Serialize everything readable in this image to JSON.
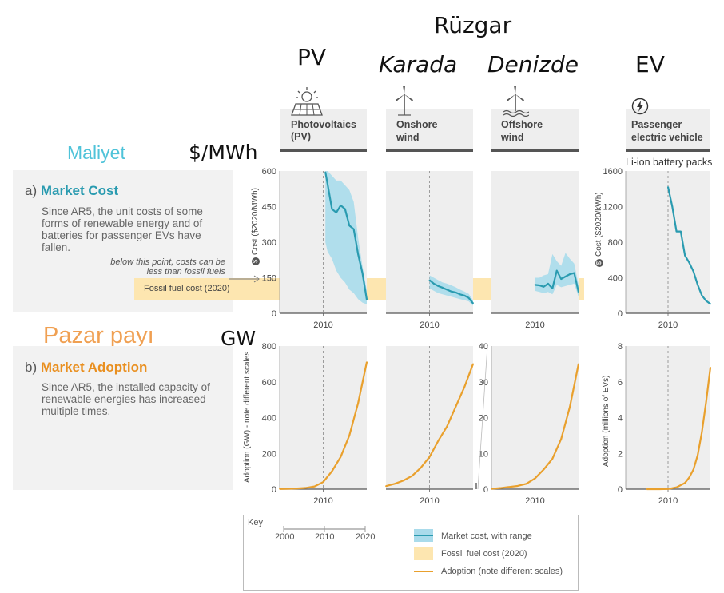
{
  "overlay": {
    "pv": "PV",
    "ruzgar": "Rüzgar",
    "karada": "Karada",
    "denizde": "Denizde",
    "ev": "EV",
    "maliyet": "Maliyet",
    "unit_cost": "$/MWh",
    "pazar": "Pazar payı",
    "unit_adopt": "GW"
  },
  "panels": {
    "a_prefix": "a)",
    "a_title": "Market Cost",
    "a_text": "Since AR5, the unit costs of some forms of renewable energy and of batteries for passenger EVs have fallen.",
    "b_prefix": "b)",
    "b_title": "Market Adoption",
    "b_text": "Since AR5, the installed capacity of renewable energies has increased multiple times."
  },
  "tiles": {
    "pv": "Photovoltaics (PV)",
    "onshore_1": "Onshore",
    "onshore_2": "wind",
    "offshore_1": "Offshore",
    "offshore_2": "wind",
    "ev_1": "Passenger",
    "ev_2": "electric vehicle"
  },
  "labels": {
    "battery_note": "Li-ion battery packs",
    "cost_axis": "Cost ($2020/MWh)",
    "cost_axis_ev": "Cost ($2020/kWh)",
    "adopt_axis": "Adoption (GW) - note different scales",
    "adopt_axis_ev": "Adoption (millions of EVs)",
    "fossil_note": "below this point, costs can be less than fossil fuels",
    "fossil_band": "Fossil fuel cost (2020)"
  },
  "key": {
    "title": "Key",
    "years": [
      "2000",
      "2010",
      "2020"
    ],
    "item_cost": "Market cost, with range",
    "item_fossil": "Fossil fuel cost (2020)",
    "item_adopt": "Adoption (note different scales)"
  },
  "colors": {
    "cost_line": "#2a9bb0",
    "cost_range": "#a9dbeb",
    "fossil": "#fde6b0",
    "adoption": "#e9a02d",
    "tile_bg": "#eeeeee"
  },
  "chart_data": [
    {
      "type": "line",
      "panel": "cost",
      "tech": "Photovoltaics (PV)",
      "ylabel": "Cost ($2020/MWh)",
      "xlim": [
        2000,
        2020
      ],
      "ylim": [
        0,
        600
      ],
      "yticks": [
        0,
        150,
        300,
        450,
        600
      ],
      "xticks": [
        2010
      ],
      "x": [
        2010.5,
        2011,
        2012,
        2013,
        2014,
        2015,
        2016,
        2017,
        2018,
        2019,
        2020
      ],
      "series": [
        {
          "values": [
            595,
            545,
            440,
            425,
            455,
            440,
            370,
            355,
            250,
            170,
            58
          ]
        }
      ],
      "range_low": [
        300,
        260,
        230,
        180,
        150,
        130,
        100,
        85,
        60,
        45,
        38
      ],
      "range_high": [
        600,
        600,
        580,
        560,
        560,
        540,
        520,
        470,
        320,
        200,
        95
      ]
    },
    {
      "type": "line",
      "panel": "cost",
      "tech": "Onshore wind",
      "xlim": [
        2000,
        2020
      ],
      "ylim": [
        0,
        600
      ],
      "xticks": [
        2010
      ],
      "x": [
        2010,
        2011,
        2012,
        2013,
        2014,
        2015,
        2016,
        2017,
        2018,
        2019,
        2020
      ],
      "series": [
        {
          "values": [
            140,
            125,
            115,
            108,
            100,
            92,
            88,
            80,
            75,
            65,
            42
          ]
        }
      ],
      "range_low": [
        105,
        95,
        85,
        80,
        75,
        70,
        65,
        60,
        55,
        50,
        32
      ],
      "range_high": [
        160,
        150,
        140,
        130,
        125,
        118,
        110,
        100,
        92,
        82,
        55
      ]
    },
    {
      "type": "line",
      "panel": "cost",
      "tech": "Offshore wind",
      "xlim": [
        2000,
        2020
      ],
      "ylim": [
        0,
        600
      ],
      "xticks": [
        2010
      ],
      "x": [
        2010,
        2011,
        2012,
        2013,
        2014,
        2015,
        2016,
        2017,
        2018,
        2019,
        2020
      ],
      "series": [
        {
          "values": [
            120,
            118,
            112,
            125,
            105,
            180,
            145,
            155,
            165,
            170,
            90
          ]
        }
      ],
      "range_low": [
        95,
        90,
        85,
        90,
        80,
        120,
        110,
        115,
        120,
        125,
        70
      ],
      "range_high": [
        150,
        150,
        160,
        165,
        250,
        220,
        200,
        255,
        230,
        210,
        120
      ]
    },
    {
      "type": "line",
      "panel": "cost",
      "tech": "Passenger electric vehicle",
      "ylabel": "Cost ($2020/kWh)",
      "xlim": [
        2000,
        2020
      ],
      "ylim": [
        0,
        1600
      ],
      "yticks": [
        0,
        400,
        800,
        1200,
        1600
      ],
      "xticks": [
        2010
      ],
      "x": [
        2010,
        2011,
        2012,
        2013,
        2014,
        2015,
        2016,
        2017,
        2018,
        2019,
        2020
      ],
      "series": [
        {
          "values": [
            1420,
            1200,
            920,
            920,
            650,
            570,
            470,
            320,
            200,
            140,
            105
          ]
        }
      ]
    },
    {
      "type": "line",
      "panel": "adoption",
      "tech": "Photovoltaics (PV)",
      "ylabel": "Adoption (GW) - note different scales",
      "xlim": [
        2000,
        2020
      ],
      "ylim": [
        0,
        800
      ],
      "yticks": [
        0,
        200,
        400,
        600,
        800
      ],
      "xticks": [
        2010
      ],
      "x": [
        2000,
        2002,
        2004,
        2006,
        2008,
        2010,
        2012,
        2014,
        2016,
        2018,
        2020
      ],
      "series": [
        {
          "values": [
            1,
            2,
            4,
            7,
            15,
            40,
            100,
            180,
            300,
            480,
            710
          ]
        }
      ]
    },
    {
      "type": "line",
      "panel": "adoption",
      "tech": "Onshore wind",
      "xlim": [
        2000,
        2020
      ],
      "ylim": [
        0,
        800
      ],
      "xticks": [
        2010
      ],
      "x": [
        2000,
        2002,
        2004,
        2006,
        2008,
        2010,
        2012,
        2014,
        2016,
        2018,
        2020
      ],
      "series": [
        {
          "values": [
            17,
            30,
            48,
            74,
            120,
            180,
            270,
            350,
            460,
            570,
            700
          ]
        }
      ]
    },
    {
      "type": "line",
      "panel": "adoption",
      "tech": "Offshore wind",
      "xlim": [
        2000,
        2020
      ],
      "ylim": [
        0,
        40
      ],
      "yticks": [
        0,
        10,
        20,
        30,
        40
      ],
      "xticks": [
        2010
      ],
      "x": [
        2000,
        2002,
        2004,
        2006,
        2008,
        2010,
        2012,
        2014,
        2016,
        2018,
        2020
      ],
      "series": [
        {
          "values": [
            0.1,
            0.3,
            0.6,
            0.9,
            1.5,
            3.0,
            5.5,
            8.5,
            14,
            23,
            35
          ]
        }
      ]
    },
    {
      "type": "line",
      "panel": "adoption",
      "tech": "Passenger electric vehicle",
      "ylabel": "Adoption (millions of EVs)",
      "xlim": [
        2000,
        2020
      ],
      "ylim": [
        0,
        8
      ],
      "yticks": [
        0,
        2,
        4,
        6,
        8
      ],
      "xticks": [
        2010
      ],
      "x": [
        2005,
        2008,
        2010,
        2012,
        2014,
        2015,
        2016,
        2017,
        2018,
        2019,
        2020
      ],
      "series": [
        {
          "values": [
            0,
            0,
            0.01,
            0.1,
            0.35,
            0.65,
            1.1,
            1.9,
            3.2,
            4.9,
            6.8
          ]
        }
      ]
    }
  ]
}
